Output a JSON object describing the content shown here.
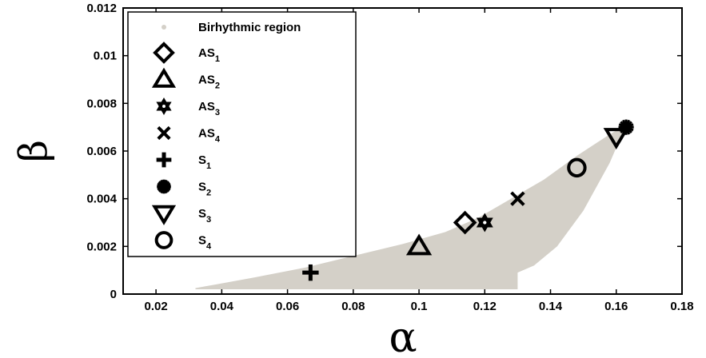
{
  "chart_data": {
    "type": "scatter",
    "xlabel": "α",
    "ylabel": "β",
    "xlim": [
      0.01,
      0.18
    ],
    "ylim": [
      0,
      0.012
    ],
    "xticks": [
      "0.02",
      "0.04",
      "0.06",
      "0.08",
      "0.1",
      "0.12",
      "0.14",
      "0.16",
      "0.18"
    ],
    "yticks": [
      "0",
      "0.002",
      "0.004",
      "0.006",
      "0.008",
      "0.01",
      "0.012"
    ],
    "legend_position": "top-left",
    "region": {
      "name": "Birhythmic region",
      "color": "#d4d0c8",
      "polygon": [
        [
          0.032,
          0.0002
        ],
        [
          0.13,
          0.0002
        ],
        [
          0.13,
          0.0009
        ],
        [
          0.135,
          0.0012
        ],
        [
          0.142,
          0.002
        ],
        [
          0.15,
          0.0035
        ],
        [
          0.158,
          0.0055
        ],
        [
          0.163,
          0.0071
        ],
        [
          0.158,
          0.0067
        ],
        [
          0.148,
          0.0058
        ],
        [
          0.138,
          0.0048
        ],
        [
          0.128,
          0.004
        ],
        [
          0.118,
          0.0032
        ],
        [
          0.108,
          0.0026
        ],
        [
          0.095,
          0.0021
        ],
        [
          0.08,
          0.0016
        ],
        [
          0.065,
          0.0011
        ],
        [
          0.05,
          0.0007
        ],
        [
          0.038,
          0.0004
        ],
        [
          0.032,
          0.00025
        ]
      ]
    },
    "points": [
      {
        "label": "AS",
        "sub": "1",
        "marker": "diamond",
        "x": 0.114,
        "y": 0.003
      },
      {
        "label": "AS",
        "sub": "2",
        "marker": "triangle-up",
        "x": 0.1,
        "y": 0.002
      },
      {
        "label": "AS",
        "sub": "3",
        "marker": "hexagram",
        "x": 0.12,
        "y": 0.003
      },
      {
        "label": "AS",
        "sub": "4",
        "marker": "x",
        "x": 0.13,
        "y": 0.004
      },
      {
        "label": "S",
        "sub": "1",
        "marker": "plus",
        "x": 0.067,
        "y": 0.0009
      },
      {
        "label": "S",
        "sub": "2",
        "marker": "asterisk",
        "x": 0.163,
        "y": 0.007
      },
      {
        "label": "S",
        "sub": "3",
        "marker": "triangle-down",
        "x": 0.16,
        "y": 0.0066
      },
      {
        "label": "S",
        "sub": "4",
        "marker": "circle",
        "x": 0.148,
        "y": 0.0053
      }
    ]
  }
}
